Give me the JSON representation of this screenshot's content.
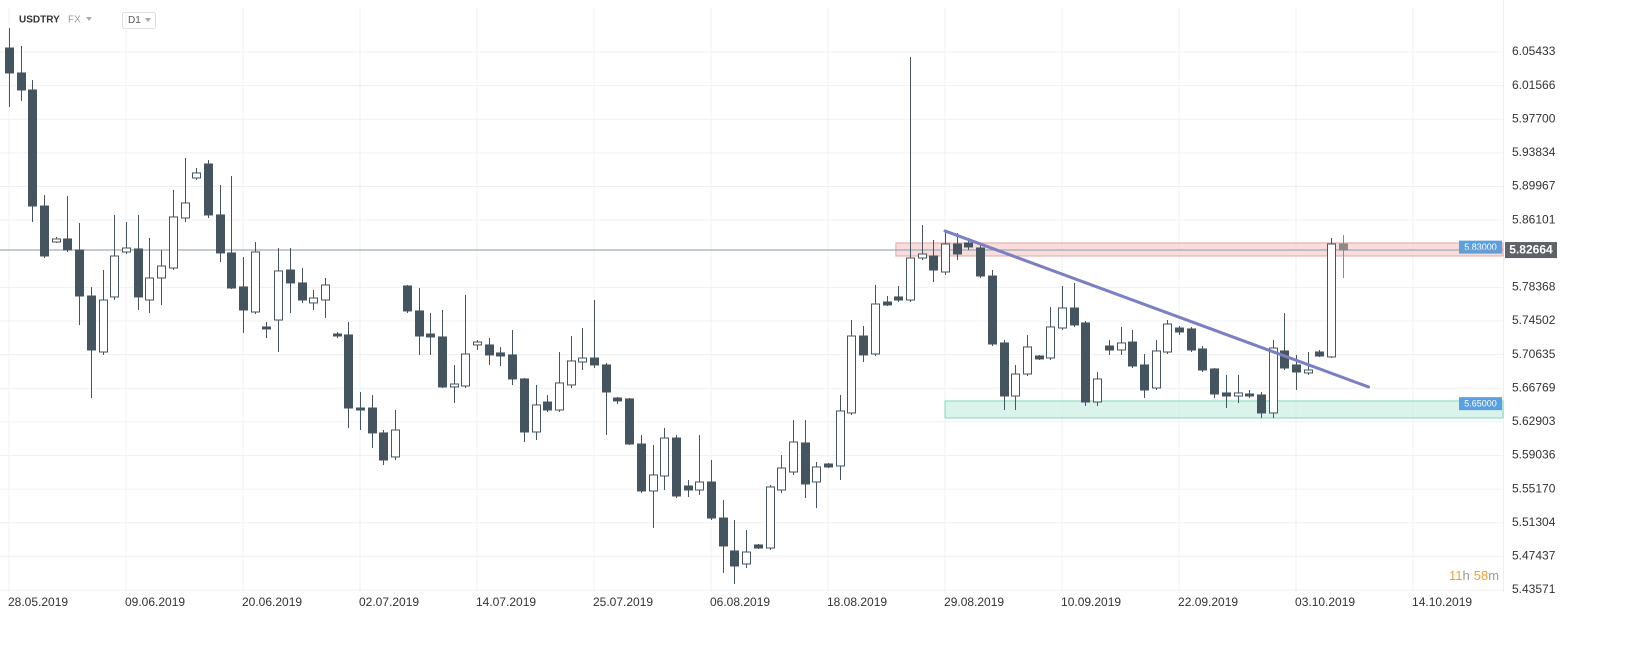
{
  "chart_data": {
    "type": "candlestick",
    "symbol": "USDTRY",
    "market": "FX",
    "interval": "D1",
    "up_color": "#ffffff",
    "down_color": "#455560",
    "last_color": "#8a8a8a",
    "grid": true,
    "xlim": [
      -0.769,
      127.69
    ],
    "xticks": [
      {
        "value": 0,
        "label": "28.05.2019"
      },
      {
        "value": 10,
        "label": "09.06.2019"
      },
      {
        "value": 20,
        "label": "20.06.2019"
      },
      {
        "value": 30,
        "label": "02.07.2019"
      },
      {
        "value": 40,
        "label": "14.07.2019"
      },
      {
        "value": 50,
        "label": "25.07.2019"
      },
      {
        "value": 60,
        "label": "06.08.2019"
      },
      {
        "value": 70,
        "label": "18.08.2019"
      },
      {
        "value": 80,
        "label": "29.08.2019"
      },
      {
        "value": 90,
        "label": "10.09.2019"
      },
      {
        "value": 100,
        "label": "22.09.2019"
      },
      {
        "value": 110,
        "label": "03.10.2019"
      },
      {
        "value": 120,
        "label": "14.10.2019"
      }
    ],
    "ylim": [
      5.4334,
      6.105
    ],
    "yticks": [
      6.05433,
      6.01566,
      {
        "value": 5.977,
        "label": "5.97700"
      },
      5.93834,
      5.89967,
      5.86101,
      5.78368,
      5.74502,
      5.70635,
      5.66769,
      5.62903,
      5.59036,
      {
        "value": 5.5517,
        "label": "5.55170"
      },
      5.51304,
      5.47437,
      5.43571
    ],
    "open": [
      6.059,
      6.0303,
      6.0107,
      5.8773,
      5.8359,
      5.8394,
      5.8267,
      5.7738,
      5.7094,
      5.7727,
      5.8244,
      5.8279,
      5.7692,
      5.7945,
      5.806,
      5.8635,
      5.9095,
      5.9256,
      5.867,
      5.8233,
      5.7842,
      5.7554,
      5.7382,
      5.7462,
      5.8037,
      5.7888,
      5.7658,
      5.7692,
      5.7301,
      5.729,
      5.645,
      5.645,
      5.6163,
      5.5887,
      5.7853,
      5.7566,
      5.7301,
      5.7267,
      5.6692,
      5.6703,
      5.7175,
      5.7175,
      5.7083,
      5.706,
      5.6784,
      5.6174,
      5.6519,
      5.6427,
      5.6715,
      5.6979,
      5.7025,
      5.6945,
      5.6565,
      5.6554,
      5.6036,
      5.5496,
      5.5668,
      5.6105,
      5.5553,
      5.5507,
      5.5599,
      5.5185,
      5.4806,
      5.4656,
      5.4875,
      5.484,
      5.5507,
      5.5714,
      5.6048,
      5.5599,
      5.5806,
      5.5783,
      5.6393,
      5.7278,
      5.7071,
      5.7669,
      5.7727,
      5.7692,
      5.8175,
      5.8198,
      5.8014,
      5.8336,
      5.8348,
      5.829,
      5.7968,
      5.7198,
      5.6588,
      5.6841,
      5.7048,
      5.7025,
      5.737,
      5.76,
      5.7428,
      5.6519,
      5.7163,
      5.7117,
      5.7209,
      5.6945,
      5.668,
      5.7094,
      5.737,
      5.7359,
      5.7129,
      5.6899,
      5.6623,
      5.6588,
      5.6611,
      5.66,
      5.6393,
      5.7106,
      5.6945,
      5.6853,
      5.7094,
      5.7037,
      5.8336
    ],
    "high": [
      6.082,
      6.0613,
      6.0222,
      5.89,
      5.8417,
      5.8888,
      5.8578,
      5.7842,
      5.8037,
      5.867,
      5.8589,
      5.867,
      5.8405,
      5.8267,
      5.8957,
      5.9325,
      5.921,
      5.9302,
      5.9015,
      5.9118,
      5.8187,
      5.8359,
      5.7439,
      5.829,
      5.829,
      5.806,
      5.7807,
      5.7945,
      5.7324,
      5.7439,
      5.6634,
      5.66,
      5.6197,
      5.6427,
      5.7865,
      5.783,
      5.7543,
      5.7577,
      5.6945,
      5.775,
      5.7232,
      5.7255,
      5.7152,
      5.7347,
      5.6795,
      5.6715,
      5.66,
      5.7094,
      5.7278,
      5.737,
      5.7692,
      5.6968,
      5.6577,
      5.6565,
      5.614,
      5.6025,
      5.622,
      5.614,
      5.5622,
      5.614,
      5.5852,
      5.5392,
      5.5162,
      5.5047,
      5.4886,
      5.5565,
      5.591,
      5.6312,
      5.6312,
      5.5829,
      5.5818,
      5.66,
      5.7462,
      5.7393,
      5.7865,
      5.7738,
      5.7853,
      6.0487,
      5.8555,
      5.8382,
      5.8486,
      5.8463,
      5.8382,
      5.8336,
      5.8037,
      5.7232,
      5.6945,
      5.729,
      5.706,
      5.7612,
      5.7853,
      5.7888,
      5.7451,
      5.6864,
      5.7232,
      5.7382,
      5.7347,
      5.7071,
      5.7232,
      5.7462,
      5.7393,
      5.7382,
      5.7163,
      5.691,
      5.683,
      5.683,
      5.6657,
      5.6634,
      5.7232,
      5.7543,
      5.706,
      5.7094,
      5.7117,
      5.8405,
      5.844
    ],
    "low": [
      5.9912,
      5.9981,
      5.8589,
      5.8175,
      5.8348,
      5.8244,
      5.7405,
      5.6565,
      5.706,
      5.7692,
      5.8221,
      5.7577,
      5.7543,
      5.7635,
      5.8037,
      5.8589,
      5.9072,
      5.8635,
      5.8129,
      5.7819,
      5.7313,
      5.7531,
      5.7255,
      5.7094,
      5.7543,
      5.7658,
      5.7577,
      5.7485,
      5.7255,
      5.622,
      5.6197,
      5.599,
      5.5795,
      5.5852,
      5.7543,
      5.706,
      5.706,
      5.668,
      5.6508,
      5.668,
      5.7117,
      5.6945,
      5.6933,
      5.6715,
      5.6059,
      5.6082,
      5.6404,
      5.6404,
      5.668,
      5.6887,
      5.691,
      5.614,
      5.6496,
      5.6025,
      5.5473,
      5.507,
      5.5507,
      5.5415,
      5.5427,
      5.545,
      5.5162,
      5.4553,
      5.4426,
      5.461,
      5.4829,
      5.4817,
      5.5473,
      5.568,
      5.5415,
      5.53,
      5.576,
      5.5622,
      5.637,
      5.6979,
      5.7048,
      5.7623,
      5.7669,
      5.7669,
      5.8152,
      5.7899,
      5.798,
      5.8152,
      5.8267,
      5.7945,
      5.7163,
      5.6427,
      5.6427,
      5.6818,
      5.7002,
      5.7002,
      5.7347,
      5.7382,
      5.6473,
      5.6473,
      5.706,
      5.706,
      5.691,
      5.6565,
      5.6657,
      5.7071,
      5.729,
      5.7094,
      5.6864,
      5.6565,
      5.645,
      5.6508,
      5.6565,
      5.6335,
      5.6335,
      5.6887,
      5.6657,
      5.683,
      5.7037,
      5.7025,
      5.7945
    ],
    "close": [
      6.0303,
      6.0107,
      5.8773,
      5.8198,
      5.8394,
      5.8267,
      5.7738,
      5.7117,
      5.7692,
      5.8198,
      5.829,
      5.7727,
      5.7945,
      5.8083,
      5.8647,
      5.8808,
      5.9153,
      5.867,
      5.8233,
      5.783,
      5.7577,
      5.8244,
      5.7359,
      5.8026,
      5.7888,
      5.7692,
      5.7715,
      5.7865,
      5.7278,
      5.645,
      5.6427,
      5.6163,
      5.5852,
      5.6197,
      5.7566,
      5.7278,
      5.7267,
      5.6692,
      5.6726,
      5.7071,
      5.7209,
      5.706,
      5.7048,
      5.6784,
      5.6174,
      5.6485,
      5.6427,
      5.6738,
      5.6991,
      5.7025,
      5.6945,
      5.6634,
      5.6531,
      5.6036,
      5.5496,
      5.568,
      5.6105,
      5.5438,
      5.5507,
      5.5599,
      5.5185,
      5.4863,
      5.4633,
      5.4794,
      5.484,
      5.5542,
      5.576,
      5.6059,
      5.5576,
      5.5772,
      5.5772,
      5.6416,
      5.7278,
      5.706,
      5.7646,
      5.7635,
      5.7692,
      5.8175,
      5.8221,
      5.8037,
      5.8336,
      5.8221,
      5.8302,
      5.7968,
      5.7186,
      5.6588,
      5.6841,
      5.7152,
      5.7014,
      5.7382,
      5.76,
      5.7405,
      5.6519,
      5.6784,
      5.7117,
      5.7198,
      5.6933,
      5.6657,
      5.7106,
      5.7416,
      5.7324,
      5.7117,
      5.6887,
      5.6611,
      5.6588,
      5.6623,
      5.6588,
      5.6393,
      5.714,
      5.691,
      5.6864,
      5.6887,
      5.7048,
      5.8336,
      5.82664
    ],
    "last_price": {
      "value": 5.82664,
      "label": "5.82664"
    },
    "zones": [
      {
        "level": {
          "value": 5.83,
          "label": "5.83000"
        },
        "top": 5.8348,
        "bottom": 5.8198,
        "start": 75.8,
        "color": "#f6d2d2",
        "border": "#e8a4a4"
      },
      {
        "level": {
          "value": 5.65,
          "label": "5.65000"
        },
        "top": 5.6531,
        "bottom": 5.6335,
        "start": 80,
        "color": "#cdf0e4",
        "border": "#86d6bb"
      }
    ],
    "trendline": {
      "start": [
        80,
        5.8486
      ],
      "end": [
        116.2,
        5.6692
      ],
      "color": "#7b7fc4"
    },
    "timer": {
      "hours": 11,
      "hours_unit": "h",
      "minutes": 58,
      "minutes_unit": "m"
    }
  }
}
